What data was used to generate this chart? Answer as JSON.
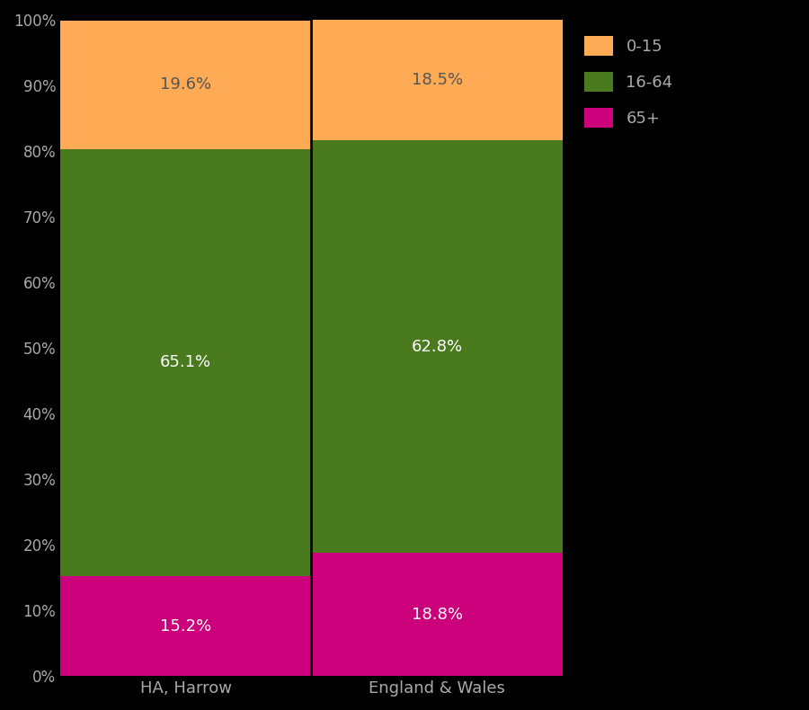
{
  "categories": [
    "HA, Harrow",
    "England & Wales"
  ],
  "segments": {
    "65+": [
      15.2,
      18.8
    ],
    "16-64": [
      65.1,
      62.8
    ],
    "0-15": [
      19.6,
      18.5
    ]
  },
  "colors": {
    "65+": "#CC007A",
    "16-64": "#4A7A1E",
    "0-15": "#FFAA55"
  },
  "labels": {
    "65+": [
      "15.2%",
      "18.8%"
    ],
    "16-64": [
      "65.1%",
      "62.8%"
    ],
    "0-15": [
      "19.6%",
      "18.5%"
    ]
  },
  "label_colors": {
    "65+": "#ffffff",
    "16-64": "#ffffff",
    "0-15": "#555555"
  },
  "background_color": "#000000",
  "tick_color": "#aaaaaa",
  "ylim": [
    0,
    100
  ],
  "yticks": [
    0,
    10,
    20,
    30,
    40,
    50,
    60,
    70,
    80,
    90,
    100
  ],
  "ytick_labels": [
    "0%",
    "10%",
    "20%",
    "30%",
    "40%",
    "50%",
    "60%",
    "70%",
    "80%",
    "90%",
    "100%"
  ],
  "legend_labels": [
    "0-15",
    "16-64",
    "65+"
  ],
  "legend_colors": [
    "#FFAA55",
    "#4A7A1E",
    "#CC007A"
  ],
  "figsize": [
    9.0,
    7.9
  ],
  "dpi": 100
}
